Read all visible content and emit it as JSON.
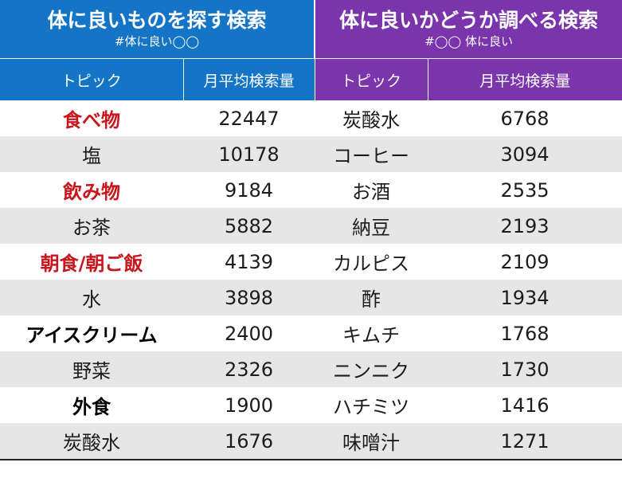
{
  "left_panel": {
    "title": "体に良いものを探す検索",
    "subtitle": "#体に良い◯◯",
    "header_colors": "#1474c6",
    "columns": [
      "トピック",
      "月平均検索量"
    ]
  },
  "right_panel": {
    "title": "体に良いかどうか調べる検索",
    "subtitle": "#◯◯ 体に良い",
    "header_colors": "#7a35ad",
    "columns": [
      "トピック",
      "月平均検索量"
    ]
  },
  "highlight_colors": {
    "red": "#c8161d",
    "black": "#000000"
  },
  "rows": [
    {
      "left_topic": "食べ物",
      "left_volume": "22447",
      "left_style": "red",
      "right_topic": "炭酸水",
      "right_volume": "6768"
    },
    {
      "left_topic": "塩",
      "left_volume": "10178",
      "left_style": "",
      "right_topic": "コーヒー",
      "right_volume": "3094"
    },
    {
      "left_topic": "飲み物",
      "left_volume": "9184",
      "left_style": "red",
      "right_topic": "お酒",
      "right_volume": "2535"
    },
    {
      "left_topic": "お茶",
      "left_volume": "5882",
      "left_style": "",
      "right_topic": "納豆",
      "right_volume": "2193"
    },
    {
      "left_topic": "朝食/朝ご飯",
      "left_volume": "4139",
      "left_style": "red",
      "right_topic": "カルピス",
      "right_volume": "2109"
    },
    {
      "left_topic": "水",
      "left_volume": "3898",
      "left_style": "",
      "right_topic": "酢",
      "right_volume": "1934"
    },
    {
      "left_topic": "アイスクリーム",
      "left_volume": "2400",
      "left_style": "black",
      "right_topic": "キムチ",
      "right_volume": "1768"
    },
    {
      "left_topic": "野菜",
      "left_volume": "2326",
      "left_style": "",
      "right_topic": "ニンニク",
      "right_volume": "1730"
    },
    {
      "left_topic": "外食",
      "left_volume": "1900",
      "left_style": "black",
      "right_topic": "ハチミツ",
      "right_volume": "1416"
    },
    {
      "left_topic": "炭酸水",
      "left_volume": "1676",
      "left_style": "",
      "right_topic": "味噌汁",
      "right_volume": "1271"
    }
  ]
}
